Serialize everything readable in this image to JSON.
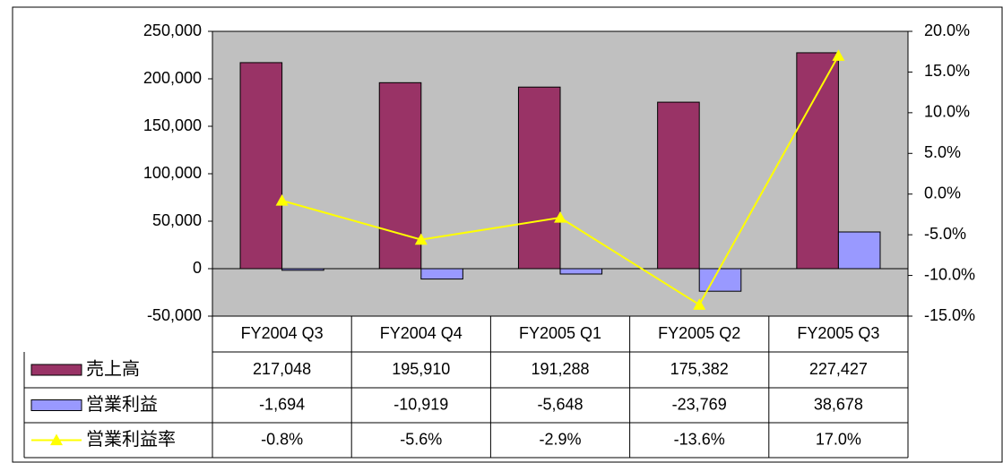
{
  "chart_data": {
    "type": "bar_line_table",
    "categories": [
      "FY2004 Q3",
      "FY2004 Q4",
      "FY2005 Q1",
      "FY2005 Q2",
      "FY2005 Q3"
    ],
    "series": [
      {
        "name": "売上高",
        "type": "bar",
        "color": "#993366",
        "values": [
          217048,
          195910,
          191288,
          175382,
          227427
        ],
        "value_labels": [
          "217,048",
          "195,910",
          "191,288",
          "175,382",
          "227,427"
        ]
      },
      {
        "name": "営業利益",
        "type": "bar",
        "color": "#9999ff",
        "values": [
          -1694,
          -10919,
          -5648,
          -23769,
          38678
        ],
        "value_labels": [
          "-1,694",
          "-10,919",
          "-5,648",
          "-23,769",
          "38,678"
        ]
      },
      {
        "name": "営業利益率",
        "type": "line",
        "axis": "y2",
        "color": "#ffff00",
        "values": [
          -0.8,
          -5.6,
          -2.9,
          -13.6,
          17.0
        ],
        "value_labels": [
          "-0.8%",
          "-5.6%",
          "-2.9%",
          "-13.6%",
          "17.0%"
        ]
      }
    ],
    "ylim": [
      -50000,
      250000
    ],
    "yticks": [
      {
        "value": -50000,
        "label": "-50,000"
      },
      0,
      {
        "value": 50000,
        "label": "50,000"
      },
      {
        "value": 100000,
        "label": "100,000"
      },
      {
        "value": 150000,
        "label": "150,000"
      },
      {
        "value": 200000,
        "label": "200,000"
      },
      {
        "value": 250000,
        "label": "250,000"
      }
    ],
    "negative_tick_color": "#ff0000",
    "y2lim": [
      -15,
      20
    ],
    "y2ticks": [
      {
        "value": -15,
        "label": "-15.0%"
      },
      {
        "value": -10,
        "label": "-10.0%"
      },
      {
        "value": -5,
        "label": "-5.0%"
      },
      {
        "value": 0,
        "label": "0.0%"
      },
      {
        "value": 5,
        "label": "5.0%"
      },
      {
        "value": 10,
        "label": "10.0%"
      },
      {
        "value": 15,
        "label": "15.0%"
      },
      {
        "value": 20,
        "label": "20.0%"
      }
    ],
    "plot_background": "#c0c0c0"
  }
}
